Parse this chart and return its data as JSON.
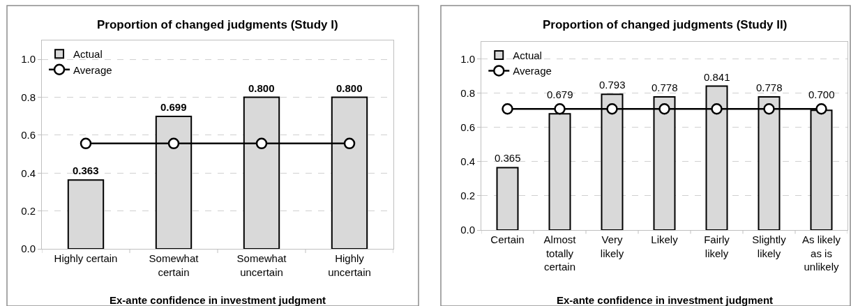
{
  "chart_data": [
    {
      "type": "bar",
      "title": "Proportion of changed judgments (Study I)",
      "xlabel": "Ex-ante confidence in investment judgment",
      "categories": [
        "Highly certain",
        "Somewhat certain",
        "Somewhat uncertain",
        "Highly uncertain"
      ],
      "series": [
        {
          "name": "Actual",
          "color": "#d9d9d9",
          "values": [
            0.363,
            0.699,
            0.8,
            0.8
          ],
          "value_labels": [
            "0.363",
            "0.699",
            "0.800",
            "0.800"
          ]
        },
        {
          "name": "Average",
          "type": "line",
          "color": "#000000",
          "marker": "circle",
          "values": [
            0.556,
            0.556,
            0.556,
            0.556
          ]
        }
      ],
      "ylim": [
        0,
        1.1
      ],
      "yticks": [
        {
          "value": 0,
          "label": "0.0"
        },
        {
          "value": 0.2,
          "label": "0.2"
        },
        {
          "value": 0.4,
          "label": "0.4"
        },
        {
          "value": 0.6,
          "label": "0.6"
        },
        {
          "value": 0.8,
          "label": "0.8"
        },
        {
          "value": 1,
          "label": "1.0"
        }
      ],
      "grid": "y",
      "legend": "top left"
    },
    {
      "type": "bar",
      "title": "Proportion of changed judgments (Study II)",
      "xlabel": "Ex-ante confidence in investment judgment",
      "categories": [
        "Certain",
        "Almost totally certain",
        "Very likely",
        "Likely",
        "Fairly likely",
        "Slightly likely",
        "As likely as is unlikely"
      ],
      "series": [
        {
          "name": "Actual",
          "color": "#d9d9d9",
          "values": [
            0.365,
            0.679,
            0.793,
            0.778,
            0.841,
            0.778,
            0.7
          ],
          "value_labels": [
            "0.365",
            "0.679",
            "0.793",
            "0.778",
            "0.841",
            "0.778",
            "0.700"
          ]
        },
        {
          "name": "Average",
          "type": "line",
          "color": "#000000",
          "marker": "circle",
          "values": [
            0.708,
            0.708,
            0.708,
            0.708,
            0.708,
            0.708,
            0.708
          ]
        }
      ],
      "ylim": [
        0,
        1.1
      ],
      "yticks": [
        {
          "value": 0,
          "label": "0.0"
        },
        {
          "value": 0.2,
          "label": "0.2"
        },
        {
          "value": 0.4,
          "label": "0.4"
        },
        {
          "value": 0.6,
          "label": "0.6"
        },
        {
          "value": 0.8,
          "label": "0.8"
        },
        {
          "value": 1,
          "label": "1.0"
        }
      ],
      "grid": "y",
      "legend": "top left"
    }
  ]
}
